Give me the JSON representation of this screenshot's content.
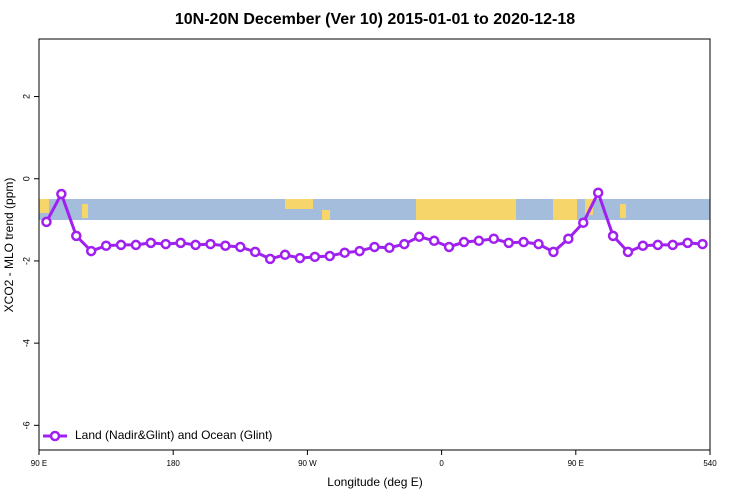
{
  "chart_data": {
    "type": "line",
    "title": "10N-20N December (Ver 10)   2015-01-01 to 2020-12-18",
    "x_label": "Longitude (deg E)",
    "y_label": "XCO2 - MLO trend (ppm)",
    "x": [
      95,
      105,
      115,
      125,
      135,
      145,
      155,
      165,
      175,
      185,
      195,
      205,
      215,
      225,
      235,
      245,
      255,
      265,
      275,
      285,
      295,
      305,
      315,
      325,
      335,
      345,
      355,
      365,
      375,
      385,
      395,
      405,
      415,
      425,
      435,
      445,
      455,
      465,
      475,
      485,
      495,
      505,
      515,
      525,
      535
    ],
    "series": [
      {
        "name": "Land (Nadir&Glint) and Ocean (Glint)",
        "color": "#a020f0",
        "values": [
          -1.05,
          -0.37,
          -1.39,
          -1.76,
          -1.63,
          -1.61,
          -1.61,
          -1.56,
          -1.59,
          -1.56,
          -1.61,
          -1.59,
          -1.63,
          -1.66,
          -1.78,
          -1.95,
          -1.85,
          -1.93,
          -1.9,
          -1.88,
          -1.8,
          -1.76,
          -1.66,
          -1.68,
          -1.59,
          -1.41,
          -1.51,
          -1.66,
          -1.54,
          -1.51,
          -1.46,
          -1.56,
          -1.54,
          -1.59,
          -1.78,
          -1.46,
          -1.07,
          -0.34,
          -1.39,
          -1.78,
          -1.63,
          -1.61,
          -1.61,
          -1.56,
          -1.59
        ]
      }
    ],
    "xlim": [
      90,
      540
    ],
    "xticks": [
      {
        "value": 90,
        "label": "90 E"
      },
      180,
      {
        "value": 270,
        "label": "90 W"
      },
      {
        "value": 360,
        "label": "0"
      },
      {
        "value": 450,
        "label": "90 E"
      },
      540
    ],
    "ylim": [
      -6.6,
      3.4
    ],
    "yticks": [
      -6,
      -4,
      -2,
      0,
      2
    ],
    "legend": "bottom-left"
  }
}
